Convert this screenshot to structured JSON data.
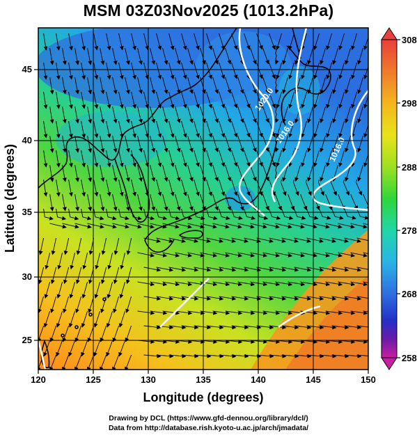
{
  "title": "MSM 03Z03Nov2025 (1013.2hPa)",
  "map": {
    "xaxis": {
      "label": "Longitude (degrees)",
      "range": [
        120,
        150
      ],
      "ticks": [
        "120",
        "125",
        "130",
        "135",
        "140",
        "145",
        "150"
      ]
    },
    "yaxis": {
      "label": "Latitude  (degrees)",
      "range": [
        22.5,
        47.6
      ],
      "ticks": [
        "25",
        "30",
        "35",
        "40",
        "45"
      ]
    },
    "contours": [
      "1020.0",
      "1016.0",
      "1016.0"
    ],
    "contour_color": "#ffffff"
  },
  "colorbar": {
    "ticks": [
      "308",
      "298",
      "288",
      "278",
      "268",
      "258"
    ],
    "colors": [
      "#e8403a",
      "#f07a2a",
      "#f4b51e",
      "#e8e21a",
      "#9ee021",
      "#2fd63a",
      "#20d6a8",
      "#2ab4e8",
      "#2f6ee0",
      "#2233c8",
      "#6a1aa8",
      "#c81ea0"
    ]
  },
  "credits": [
    "Drawing by DCL (https://www.gfd-dennou.org/library/dcl/)",
    "Data from http://database.rish.kyoto-u.ac.jp/arch/jmadata/"
  ]
}
